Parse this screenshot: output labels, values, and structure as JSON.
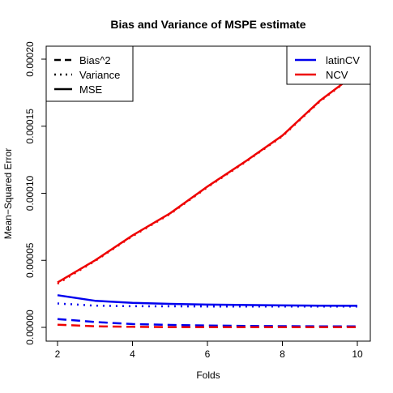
{
  "chart_data": {
    "type": "line",
    "title": "Bias and Variance of MSPE estimate",
    "xlabel": "Folds",
    "ylabel": "Mean−Squared Error",
    "x": [
      2,
      3,
      4,
      5,
      6,
      7,
      8,
      9,
      10
    ],
    "xlim": [
      2,
      10
    ],
    "ylim": [
      0,
      0.0002
    ],
    "x_ticks": [
      2,
      4,
      6,
      8,
      10
    ],
    "y_ticks": [
      0,
      5e-05,
      0.0001,
      0.00015,
      0.0002
    ],
    "x_tick_labels": [
      "2",
      "4",
      "6",
      "8",
      "10"
    ],
    "y_tick_labels": [
      "0.00000",
      "0.00005",
      "0.00010",
      "0.00015",
      "0.00020"
    ],
    "grid": false,
    "legend_linetype": {
      "placement": "top-left",
      "entries": [
        {
          "label": "Bias^2",
          "dash": "dashed"
        },
        {
          "label": "Variance",
          "dash": "dotted"
        },
        {
          "label": "MSE",
          "dash": "solid"
        }
      ]
    },
    "legend_method": {
      "placement": "top-right",
      "entries": [
        {
          "label": "latinCV",
          "color": "#0000ee"
        },
        {
          "label": "NCV",
          "color": "#ee0000"
        }
      ]
    },
    "series": [
      {
        "method": "latinCV",
        "metric": "Bias^2",
        "color": "#0000ee",
        "dash": "dashed",
        "values": [
          6.2e-06,
          4e-06,
          2.5e-06,
          1.8e-06,
          1.4e-06,
          1.1e-06,
          9e-07,
          8e-07,
          7e-07
        ]
      },
      {
        "method": "latinCV",
        "metric": "Variance",
        "color": "#0000ee",
        "dash": "dotted",
        "values": [
          1.78e-05,
          1.62e-05,
          1.58e-05,
          1.57e-05,
          1.56e-05,
          1.56e-05,
          1.55e-05,
          1.55e-05,
          1.55e-05
        ]
      },
      {
        "method": "latinCV",
        "metric": "MSE",
        "color": "#0000ee",
        "dash": "solid",
        "values": [
          2.4e-05,
          1.98e-05,
          1.83e-05,
          1.75e-05,
          1.7e-05,
          1.67e-05,
          1.64e-05,
          1.62e-05,
          1.61e-05
        ]
      },
      {
        "method": "NCV",
        "metric": "Bias^2",
        "color": "#ee0000",
        "dash": "dashed",
        "values": [
          2e-06,
          8e-07,
          4e-07,
          2e-07,
          1e-07,
          1e-07,
          1e-07,
          1e-07,
          1e-07
        ]
      },
      {
        "method": "NCV",
        "metric": "Variance",
        "color": "#ee0000",
        "dash": "dotted",
        "values": [
          3.25e-05,
          4.95e-05,
          6.8e-05,
          8.45e-05,
          0.0001045,
          0.000123,
          0.0001425,
          0.0001685,
          0.0001895
        ]
      },
      {
        "method": "NCV",
        "metric": "MSE",
        "color": "#ee0000",
        "dash": "solid",
        "values": [
          3.35e-05,
          5e-05,
          6.85e-05,
          8.5e-05,
          0.000105,
          0.0001235,
          0.000143,
          0.000169,
          0.00019
        ]
      }
    ]
  }
}
